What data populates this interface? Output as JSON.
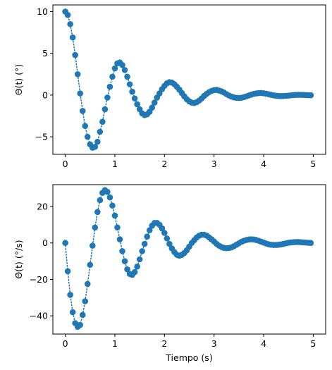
{
  "chart_data": [
    {
      "type": "scatter",
      "ylabel": "Θ(t) (°)",
      "xlabel": "",
      "xlim": [
        -0.25,
        5.25
      ],
      "ylim": [
        -7.1,
        10.8
      ],
      "xticks": [
        0,
        1,
        2,
        3,
        4,
        5
      ],
      "xtick_labels": [
        "0",
        "1",
        "2",
        "3",
        "4",
        "5"
      ],
      "yticks": [
        -5,
        0,
        5,
        10
      ],
      "ytick_labels": [
        "−5",
        "0",
        "5",
        "10"
      ],
      "grid": false,
      "marker": "circle",
      "line_style": "dotted",
      "color": "#1f77b4",
      "series": [
        {
          "x": [
            0.0,
            0.05,
            0.1,
            0.15,
            0.2,
            0.25,
            0.3,
            0.35,
            0.4,
            0.45,
            0.5,
            0.55,
            0.6,
            0.65,
            0.7,
            0.75,
            0.8,
            0.85,
            0.9,
            0.95,
            1.0,
            1.05,
            1.1,
            1.15,
            1.2,
            1.25,
            1.3,
            1.35,
            1.4,
            1.45,
            1.5,
            1.55,
            1.6,
            1.65,
            1.7,
            1.75,
            1.8,
            1.85,
            1.9,
            1.95,
            2.0,
            2.05,
            2.1,
            2.15,
            2.2,
            2.25,
            2.3,
            2.35,
            2.4,
            2.45,
            2.5,
            2.55,
            2.6,
            2.65,
            2.7,
            2.75,
            2.8,
            2.85,
            2.9,
            2.95,
            3.0,
            3.05,
            3.1,
            3.15,
            3.2,
            3.25,
            3.3,
            3.35,
            3.4,
            3.45,
            3.5,
            3.55,
            3.6,
            3.65,
            3.7,
            3.75,
            3.8,
            3.85,
            3.9,
            3.95,
            4.0,
            4.05,
            4.1,
            4.15,
            4.2,
            4.25,
            4.3,
            4.35,
            4.4,
            4.45,
            4.5,
            4.55,
            4.6,
            4.65,
            4.7,
            4.75,
            4.8,
            4.85,
            4.9,
            4.95
          ],
          "y": [
            10.0,
            9.6,
            8.5,
            6.9,
            4.8,
            2.5,
            0.2,
            -1.9,
            -3.7,
            -5.0,
            -5.9,
            -6.3,
            -6.2,
            -5.6,
            -4.4,
            -3.2,
            -1.7,
            -0.3,
            1.0,
            2.2,
            3.2,
            3.8,
            3.9,
            3.6,
            3.0,
            2.2,
            1.3,
            0.4,
            -0.4,
            -1.1,
            -1.7,
            -2.2,
            -2.4,
            -2.3,
            -2.0,
            -1.5,
            -0.9,
            -0.3,
            0.2,
            0.7,
            1.1,
            1.4,
            1.55,
            1.5,
            1.3,
            1.0,
            0.65,
            0.25,
            -0.15,
            -0.5,
            -0.75,
            -0.9,
            -0.95,
            -0.85,
            -0.65,
            -0.4,
            -0.1,
            0.15,
            0.35,
            0.5,
            0.6,
            0.62,
            0.55,
            0.45,
            0.3,
            0.12,
            -0.05,
            -0.18,
            -0.28,
            -0.33,
            -0.35,
            -0.32,
            -0.25,
            -0.15,
            -0.05,
            0.05,
            0.14,
            0.2,
            0.24,
            0.25,
            0.22,
            0.17,
            0.1,
            0.03,
            -0.03,
            -0.08,
            -0.11,
            -0.12,
            -0.11,
            -0.09,
            -0.06,
            -0.03,
            0.0,
            0.02,
            0.03,
            0.03,
            0.02,
            0.0,
            -0.01,
            -0.02
          ]
        }
      ]
    },
    {
      "type": "scatter",
      "ylabel": "Θ̇(t) (°/s)",
      "xlabel": "Tiempo (s)",
      "xlim": [
        -0.25,
        5.25
      ],
      "ylim": [
        -50,
        32
      ],
      "xticks": [
        0,
        1,
        2,
        3,
        4,
        5
      ],
      "xtick_labels": [
        "0",
        "1",
        "2",
        "3",
        "4",
        "5"
      ],
      "yticks": [
        -40,
        -20,
        0,
        20
      ],
      "ytick_labels": [
        "−40",
        "−20",
        "0",
        "20"
      ],
      "grid": false,
      "marker": "circle",
      "line_style": "dotted",
      "color": "#1f77b4",
      "series": [
        {
          "x": [
            0.0,
            0.05,
            0.1,
            0.15,
            0.2,
            0.25,
            0.3,
            0.35,
            0.4,
            0.45,
            0.5,
            0.55,
            0.6,
            0.65,
            0.7,
            0.75,
            0.8,
            0.85,
            0.9,
            0.95,
            1.0,
            1.05,
            1.1,
            1.15,
            1.2,
            1.25,
            1.3,
            1.35,
            1.4,
            1.45,
            1.5,
            1.55,
            1.6,
            1.65,
            1.7,
            1.75,
            1.8,
            1.85,
            1.9,
            1.95,
            2.0,
            2.05,
            2.1,
            2.15,
            2.2,
            2.25,
            2.3,
            2.35,
            2.4,
            2.45,
            2.5,
            2.55,
            2.6,
            2.65,
            2.7,
            2.75,
            2.8,
            2.85,
            2.9,
            2.95,
            3.0,
            3.05,
            3.1,
            3.15,
            3.2,
            3.25,
            3.3,
            3.35,
            3.4,
            3.45,
            3.5,
            3.55,
            3.6,
            3.65,
            3.7,
            3.75,
            3.8,
            3.85,
            3.9,
            3.95,
            4.0,
            4.05,
            4.1,
            4.15,
            4.2,
            4.25,
            4.3,
            4.35,
            4.4,
            4.45,
            4.5,
            4.55,
            4.6,
            4.65,
            4.7,
            4.75,
            4.8,
            4.85,
            4.9,
            4.95
          ],
          "y": [
            0.0,
            -15.5,
            -28.5,
            -38.0,
            -44.0,
            -46.0,
            -45.0,
            -39.5,
            -32.0,
            -22.5,
            -12.0,
            -1.5,
            8.5,
            17.0,
            23.5,
            27.5,
            29.0,
            28.0,
            25.0,
            20.5,
            15.0,
            8.5,
            2.0,
            -4.5,
            -10.0,
            -14.5,
            -17.0,
            -17.5,
            -16.0,
            -13.0,
            -9.0,
            -4.5,
            -0.5,
            3.5,
            7.0,
            9.5,
            11.0,
            11.0,
            10.0,
            8.0,
            5.5,
            2.5,
            -0.5,
            -3.0,
            -5.0,
            -6.5,
            -7.0,
            -6.5,
            -5.5,
            -4.0,
            -2.0,
            0.0,
            1.5,
            3.0,
            4.0,
            4.5,
            4.5,
            4.0,
            3.0,
            2.0,
            0.8,
            -0.5,
            -1.5,
            -2.2,
            -2.7,
            -2.9,
            -2.8,
            -2.4,
            -1.8,
            -1.0,
            -0.2,
            0.6,
            1.2,
            1.6,
            1.9,
            2.0,
            1.9,
            1.6,
            1.2,
            0.7,
            0.2,
            -0.3,
            -0.7,
            -1.0,
            -1.1,
            -1.1,
            -1.0,
            -0.8,
            -0.5,
            -0.2,
            0.1,
            0.3,
            0.4,
            0.5,
            0.5,
            0.4,
            0.3,
            0.2,
            0.1,
            0.0
          ]
        }
      ]
    }
  ]
}
